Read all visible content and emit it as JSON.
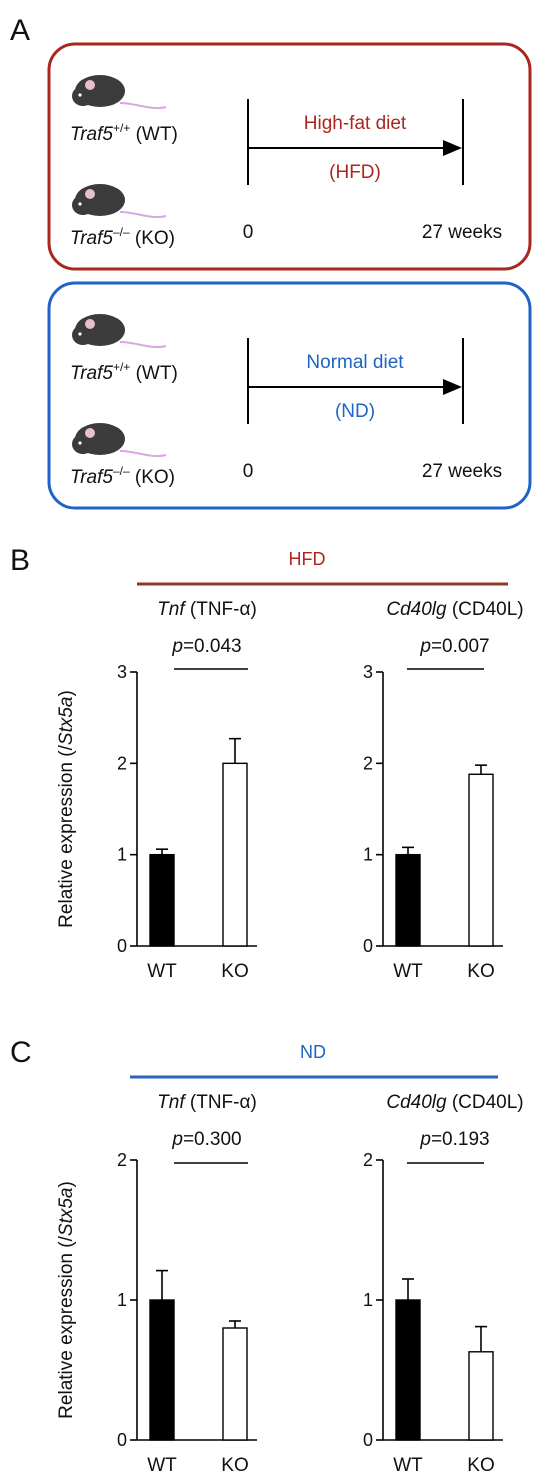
{
  "panels": {
    "A": "A",
    "B": "B",
    "C": "C"
  },
  "colors": {
    "hfd": "#a9271f",
    "nd": "#1f63c6",
    "hfd_rule": "#8b3a24",
    "nd_rule": "#2b63c0",
    "mouse": "#3b3b3b",
    "ear": "#e8bfd2",
    "tail": "#d9a7e3",
    "bar_wt": "#000000",
    "bar_ko": "#ffffff"
  },
  "design": {
    "hfd": {
      "wt_gene": "Traf5",
      "wt_sup": "+/+",
      "wt_tag": " (WT)",
      "ko_gene": "Traf5",
      "ko_sup": "–/–",
      "ko_tag": " (KO)",
      "diet_line1": "High-fat diet",
      "diet_line2": "(HFD)",
      "start": "0",
      "end": "27 weeks"
    },
    "nd": {
      "wt_gene": "Traf5",
      "wt_sup": "+/+",
      "wt_tag": " (WT)",
      "ko_gene": "Traf5",
      "ko_sup": "–/–",
      "ko_tag": " (KO)",
      "diet_line1": "Normal diet",
      "diet_line2": "(ND)",
      "start": "0",
      "end": "27 weeks"
    }
  },
  "ylabel": {
    "text": "Relative expression (/",
    "gene": "Stx5a",
    "close": ")"
  },
  "chart_data": [
    {
      "type": "bar",
      "group": "HFD",
      "title_gene": "Tnf",
      "title_protein": " (TNF-α)",
      "p_label": "p",
      "p_value": "=0.043",
      "categories": [
        "WT",
        "KO"
      ],
      "values": [
        1.0,
        2.0
      ],
      "errors": [
        0.06,
        0.27
      ],
      "ylim": [
        0,
        3
      ],
      "yticks": [
        "0",
        "1",
        "2",
        "3"
      ],
      "show_ylabel": true
    },
    {
      "type": "bar",
      "group": "HFD",
      "title_gene": "Cd40lg",
      "title_protein": " (CD40L)",
      "p_label": "p",
      "p_value": "=0.007",
      "categories": [
        "WT",
        "KO"
      ],
      "values": [
        1.0,
        1.88
      ],
      "errors": [
        0.08,
        0.1
      ],
      "ylim": [
        0,
        3
      ],
      "yticks": [
        "0",
        "1",
        "2",
        "3"
      ],
      "show_ylabel": false
    },
    {
      "type": "bar",
      "group": "ND",
      "title_gene": "Tnf",
      "title_protein": " (TNF-α)",
      "p_label": "p",
      "p_value": "=0.300",
      "categories": [
        "WT",
        "KO"
      ],
      "values": [
        1.0,
        0.8
      ],
      "errors": [
        0.21,
        0.05
      ],
      "ylim": [
        0,
        2
      ],
      "yticks": [
        "0",
        "1",
        "2"
      ],
      "show_ylabel": true
    },
    {
      "type": "bar",
      "group": "ND",
      "title_gene": "Cd40lg",
      "title_protein": " (CD40L)",
      "p_label": "p",
      "p_value": "=0.193",
      "categories": [
        "WT",
        "KO"
      ],
      "values": [
        1.0,
        0.63
      ],
      "errors": [
        0.15,
        0.18
      ],
      "ylim": [
        0,
        2
      ],
      "yticks": [
        "0",
        "1",
        "2"
      ],
      "show_ylabel": false
    }
  ]
}
